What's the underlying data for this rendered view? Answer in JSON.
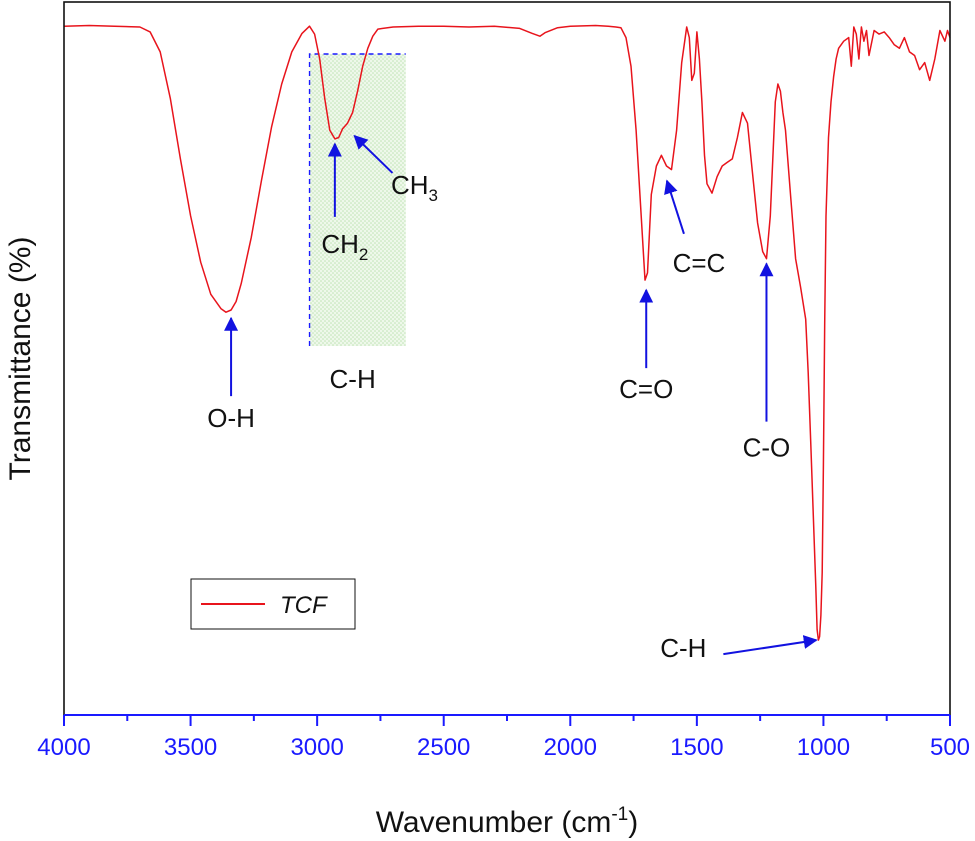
{
  "chart_data": {
    "type": "line",
    "xlabel_main": "Wavenumber (cm",
    "xlabel_sup": "-1",
    "xlabel_close": ")",
    "ylabel": "Transmittance (%)",
    "xlim": [
      4000,
      500
    ],
    "x_reversed": true,
    "ylim": [
      0,
      100
    ],
    "y_ticks_shown": false,
    "grid": false,
    "legend_position": "lower-left",
    "x_ticks": [
      4000,
      3500,
      3000,
      2500,
      2000,
      1500,
      1000,
      500
    ],
    "x_tick_labels": [
      "4000",
      "3500",
      "3000",
      "2500",
      "2000",
      "1500",
      "1000",
      "500"
    ],
    "highlight_region": {
      "x": [
        3030,
        2650
      ],
      "label": "C-H"
    },
    "series": [
      {
        "name": "TCF",
        "color": "#e8141c",
        "x": [
          4000,
          3900,
          3800,
          3700,
          3660,
          3620,
          3580,
          3540,
          3500,
          3460,
          3420,
          3380,
          3360,
          3340,
          3320,
          3300,
          3260,
          3220,
          3180,
          3140,
          3100,
          3060,
          3030,
          3010,
          2990,
          2970,
          2950,
          2930,
          2915,
          2900,
          2880,
          2860,
          2840,
          2820,
          2800,
          2780,
          2760,
          2700,
          2600,
          2500,
          2400,
          2300,
          2200,
          2150,
          2120,
          2100,
          2050,
          2000,
          1900,
          1850,
          1820,
          1800,
          1780,
          1760,
          1740,
          1720,
          1705,
          1695,
          1680,
          1660,
          1640,
          1620,
          1600,
          1580,
          1560,
          1540,
          1530,
          1520,
          1510,
          1500,
          1490,
          1480,
          1470,
          1460,
          1440,
          1420,
          1400,
          1380,
          1360,
          1340,
          1320,
          1300,
          1280,
          1260,
          1240,
          1225,
          1210,
          1200,
          1190,
          1180,
          1170,
          1160,
          1150,
          1130,
          1110,
          1090,
          1070,
          1060,
          1050,
          1040,
          1030,
          1025,
          1020,
          1015,
          1010,
          1005,
          1000,
          995,
          990,
          980,
          970,
          960,
          950,
          940,
          920,
          900,
          890,
          880,
          870,
          860,
          850,
          840,
          830,
          820,
          800,
          780,
          760,
          740,
          720,
          700,
          680,
          660,
          640,
          620,
          600,
          580,
          560,
          540,
          520,
          510,
          500
        ],
        "y": [
          96.6,
          96.7,
          96.6,
          96.5,
          95.8,
          93.0,
          86.5,
          78.0,
          70.0,
          63.5,
          59.0,
          57.0,
          56.5,
          56.8,
          58.0,
          60.5,
          67.0,
          75.0,
          82.5,
          88.5,
          93.0,
          95.6,
          96.6,
          95.5,
          92.0,
          86.5,
          82.0,
          80.8,
          81.0,
          82.2,
          83.0,
          84.5,
          87.5,
          91.0,
          93.5,
          95.2,
          96.2,
          96.5,
          96.6,
          96.6,
          96.5,
          96.6,
          96.3,
          95.6,
          95.2,
          95.7,
          96.4,
          96.6,
          96.7,
          96.6,
          96.5,
          96.4,
          95.0,
          91.0,
          82.0,
          70.0,
          61.0,
          62.0,
          73.0,
          77.0,
          78.5,
          77.0,
          76.5,
          82.0,
          91.5,
          96.5,
          95.0,
          89.0,
          90.0,
          95.8,
          92.0,
          86.0,
          78.5,
          74.5,
          73.2,
          75.5,
          77.0,
          77.5,
          78.0,
          81.0,
          84.5,
          83.0,
          76.0,
          69.0,
          65.0,
          64.0,
          70.0,
          78.0,
          86.0,
          88.5,
          87.5,
          84.5,
          82.0,
          73.0,
          64.0,
          60.0,
          55.5,
          48.0,
          38.0,
          28.0,
          18.0,
          12.0,
          10.5,
          11.0,
          14.0,
          20.0,
          35.0,
          55.0,
          70.0,
          81.0,
          86.0,
          89.5,
          92.0,
          93.5,
          94.5,
          95.0,
          91.0,
          96.5,
          95.5,
          92.0,
          96.5,
          94.5,
          96.0,
          92.5,
          96.0,
          95.5,
          95.8,
          95.0,
          94.0,
          93.5,
          95.0,
          93.0,
          92.5,
          90.5,
          91.5,
          89.0,
          92.0,
          96.0,
          94.5,
          96.0,
          95.0
        ]
      }
    ],
    "annotations": [
      {
        "id": "oh",
        "label": "O-H",
        "x": 3340,
        "y": 56.5,
        "arrow": "up"
      },
      {
        "id": "ch2",
        "label_main": "CH",
        "label_sub": "2",
        "x": 2930,
        "y": 80.8,
        "arrow": "up"
      },
      {
        "id": "ch3",
        "label_main": "CH",
        "label_sub": "3",
        "x": 2900,
        "y": 82.2,
        "arrow": "up-left"
      },
      {
        "id": "co_double",
        "label": "C=O",
        "x": 1700,
        "y": 61.0,
        "arrow": "up"
      },
      {
        "id": "cc_double",
        "label": "C=C",
        "x": 1630,
        "y": 78.0,
        "arrow": "up-left"
      },
      {
        "id": "co_single",
        "label": "C-O",
        "x": 1225,
        "y": 64.0,
        "arrow": "up"
      },
      {
        "id": "ch_low",
        "label": "C-H",
        "x": 1020,
        "y": 10.5,
        "arrow": "right"
      }
    ]
  }
}
